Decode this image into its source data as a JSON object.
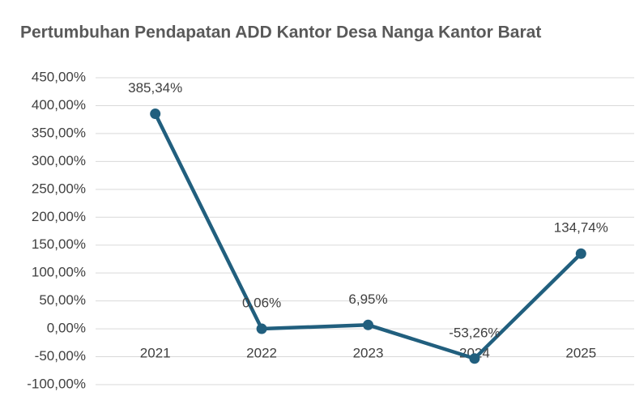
{
  "chart_data": {
    "type": "line",
    "title": "Pertumbuhan Pendapatan ADD Kantor Desa Nanga Kantor Barat",
    "categories": [
      "2021",
      "2022",
      "2023",
      "2024",
      "2025"
    ],
    "series": [
      {
        "name": "Pertumbuhan",
        "color": "#215f7e",
        "values": [
          385.34,
          0.06,
          6.95,
          -53.26,
          134.74
        ],
        "value_labels": [
          "385,34%",
          "0,06%",
          "6,95%",
          "-53,26%",
          "134,74%"
        ]
      }
    ],
    "ylim": [
      -100,
      450
    ],
    "yticks": [
      {
        "value": -100,
        "label": "-100,00%"
      },
      {
        "value": -50,
        "label": "-50,00%"
      },
      {
        "value": 0,
        "label": "0,00%"
      },
      {
        "value": 50,
        "label": "50,00%"
      },
      {
        "value": 100,
        "label": "100,00%"
      },
      {
        "value": 150,
        "label": "150,00%"
      },
      {
        "value": 200,
        "label": "200,00%"
      },
      {
        "value": 250,
        "label": "250,00%"
      },
      {
        "value": 300,
        "label": "300,00%"
      },
      {
        "value": 350,
        "label": "350,00%"
      },
      {
        "value": 400,
        "label": "400,00%"
      },
      {
        "value": 450,
        "label": "450,00%"
      }
    ],
    "grid": true
  }
}
